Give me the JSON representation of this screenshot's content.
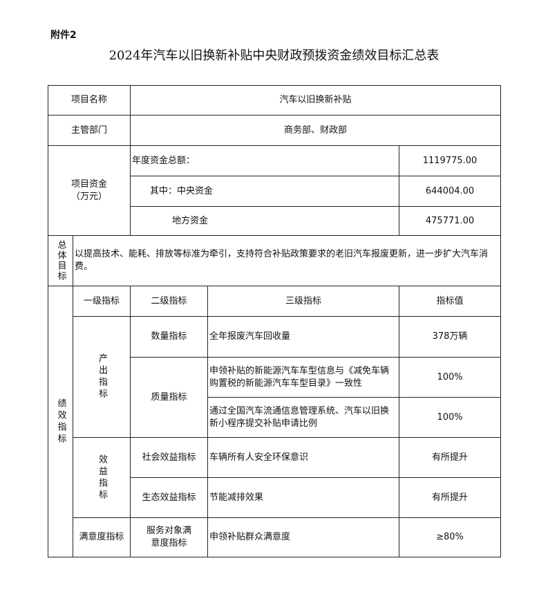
{
  "attachment": "附件2",
  "title": "2024年汽车以旧换新补贴中央财政预拨资金绩效目标汇总表",
  "project_name": {
    "label": "项目名称",
    "value": "汽车以旧换新补贴"
  },
  "department": {
    "label": "主管部门",
    "value": "商务部、财政部"
  },
  "funds": {
    "label": "项目资金",
    "unit": "（万元）",
    "rows": [
      {
        "label": "年度资金总额：",
        "value": "1119775.00"
      },
      {
        "label": "其中：中央资金",
        "value": "644004.00"
      },
      {
        "label": "地方资金",
        "value": "475771.00"
      }
    ]
  },
  "goal": {
    "label": "总体目标",
    "text": "以提高技术、能耗、排放等标准为牵引，支持符合补贴政策要求的老旧汽车报废更新，进一步扩大汽车消费。"
  },
  "performance": {
    "label": "绩效指标",
    "headers": [
      "一级指标",
      "二级指标",
      "三级指标",
      "指标值"
    ],
    "level1": [
      "产出指标",
      "效益指标",
      "满意度指标"
    ],
    "level2": [
      "数量指标",
      "质量指标",
      "社会效益指标",
      "生态效益指标",
      "服务对象满意度指标"
    ],
    "rows": [
      {
        "indicator": "全年报废汽车回收量",
        "value": "378万辆"
      },
      {
        "indicator": "申领补贴的新能源汽车车型信息与《减免车辆购置税的新能源汽车车型目录》一致性",
        "value": "100%"
      },
      {
        "indicator": "通过全国汽车流通信息管理系统、汽车以旧换新小程序提交补贴申请比例",
        "value": "100%"
      },
      {
        "indicator": "车辆所有人安全环保意识",
        "value": "有所提升"
      },
      {
        "indicator": "节能减排效果",
        "value": "有所提升"
      },
      {
        "indicator": "申领补贴群众满意度",
        "value": "≥80%"
      }
    ]
  }
}
